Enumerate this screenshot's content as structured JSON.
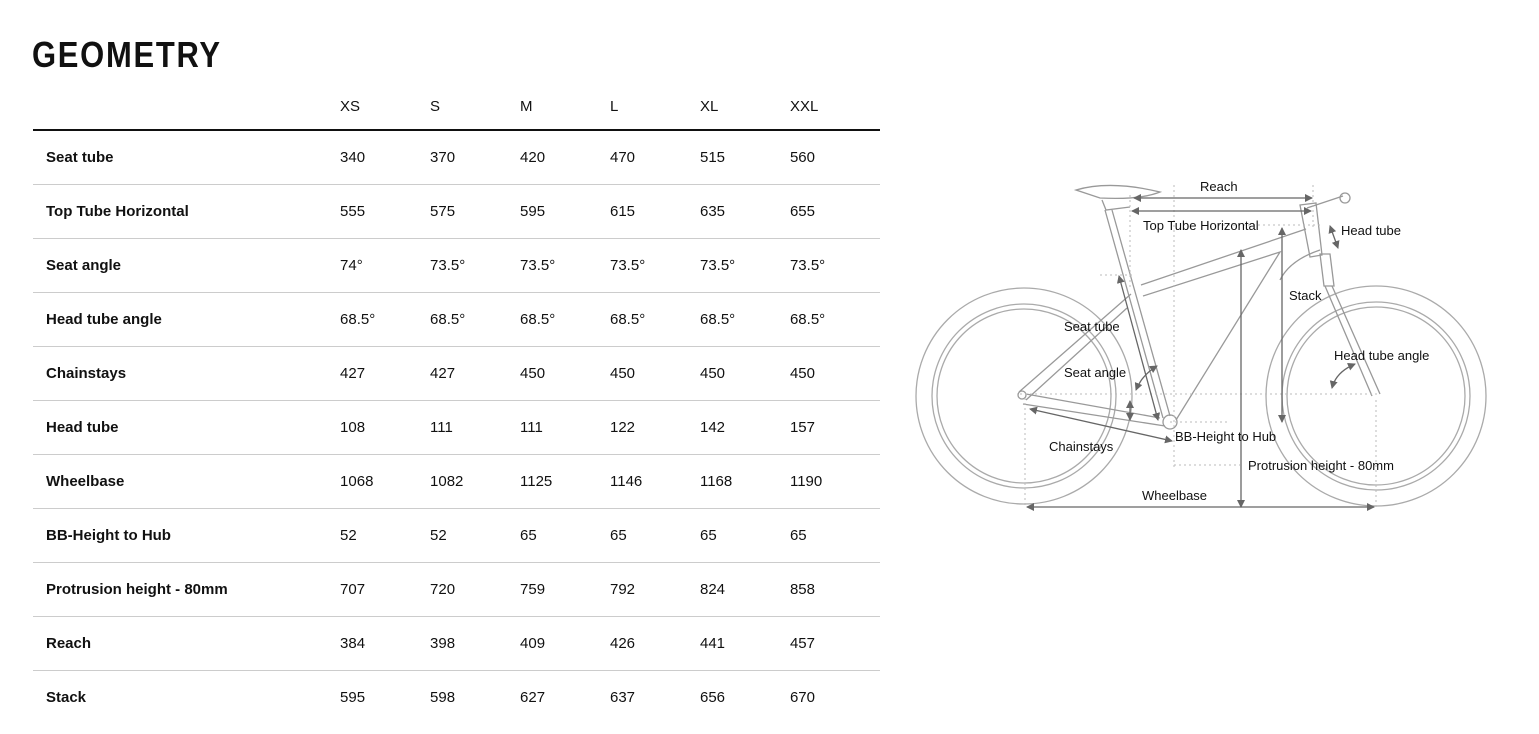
{
  "title": "GEOMETRY",
  "sizes": [
    "XS",
    "S",
    "M",
    "L",
    "XL",
    "XXL"
  ],
  "rows": [
    {
      "label": "Seat tube",
      "values": [
        "340",
        "370",
        "420",
        "470",
        "515",
        "560"
      ]
    },
    {
      "label": "Top Tube Horizontal",
      "values": [
        "555",
        "575",
        "595",
        "615",
        "635",
        "655"
      ]
    },
    {
      "label": "Seat angle",
      "values": [
        "74°",
        "73.5°",
        "73.5°",
        "73.5°",
        "73.5°",
        "73.5°"
      ]
    },
    {
      "label": "Head tube angle",
      "values": [
        "68.5°",
        "68.5°",
        "68.5°",
        "68.5°",
        "68.5°",
        "68.5°"
      ]
    },
    {
      "label": "Chainstays",
      "values": [
        "427",
        "427",
        "450",
        "450",
        "450",
        "450"
      ]
    },
    {
      "label": "Head tube",
      "values": [
        "108",
        "111",
        "111",
        "122",
        "142",
        "157"
      ]
    },
    {
      "label": "Wheelbase",
      "values": [
        "1068",
        "1082",
        "1125",
        "1146",
        "1168",
        "1190"
      ]
    },
    {
      "label": "BB-Height to Hub",
      "values": [
        "52",
        "52",
        "65",
        "65",
        "65",
        "65"
      ]
    },
    {
      "label": "Protrusion height - 80mm",
      "values": [
        "707",
        "720",
        "759",
        "792",
        "824",
        "858"
      ]
    },
    {
      "label": "Reach",
      "values": [
        "384",
        "398",
        "409",
        "426",
        "441",
        "457"
      ]
    },
    {
      "label": "Stack",
      "values": [
        "595",
        "598",
        "627",
        "637",
        "656",
        "670"
      ]
    }
  ],
  "diagram": {
    "labels": {
      "reach": "Reach",
      "top_tube": "Top Tube Horizontal",
      "head_tube": "Head tube",
      "stack": "Stack",
      "seat_tube": "Seat tube",
      "head_tube_angle": "Head tube angle",
      "seat_angle": "Seat angle",
      "bb_height": "BB-Height to Hub",
      "chainstays": "Chainstays",
      "protrusion": "Protrusion height - 80mm",
      "wheelbase": "Wheelbase"
    },
    "colors": {
      "frame": "#999999",
      "arrow": "#666666"
    }
  }
}
